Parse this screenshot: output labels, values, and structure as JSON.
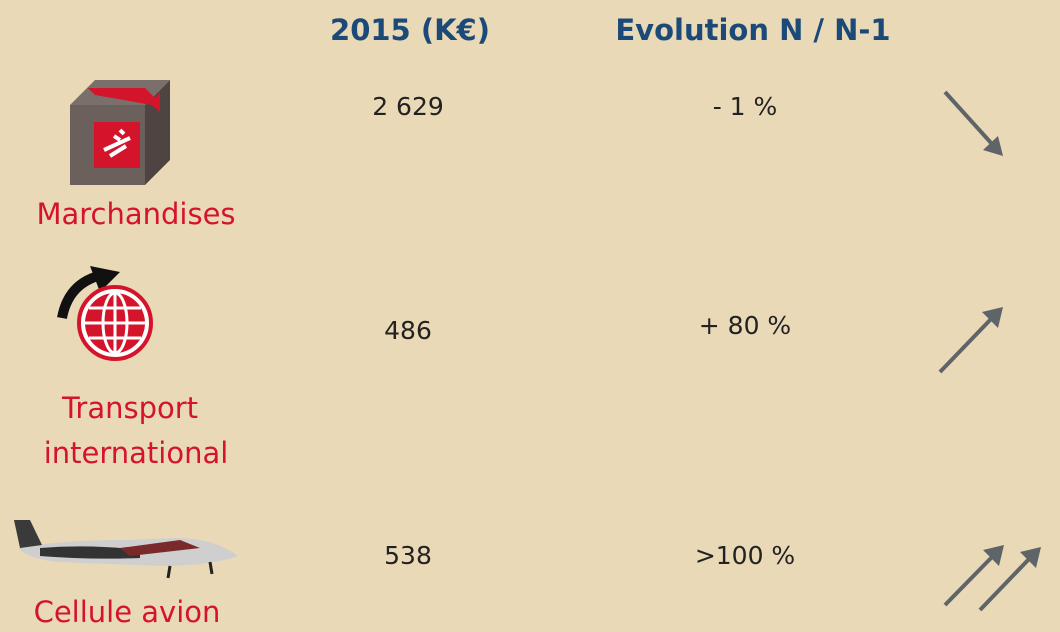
{
  "header": {
    "columns": [
      "2015 (K€)",
      "Evolution N / N-1"
    ]
  },
  "rows": [
    {
      "label": [
        "Marchandises"
      ],
      "value": "2 629",
      "evolution": "- 1 %"
    },
    {
      "label": [
        "Transport",
        "international"
      ],
      "value": "486",
      "evolution": "+ 80 %"
    },
    {
      "label": [
        "Cellule avion"
      ],
      "value": "538",
      "evolution": ">100 %"
    }
  ]
}
